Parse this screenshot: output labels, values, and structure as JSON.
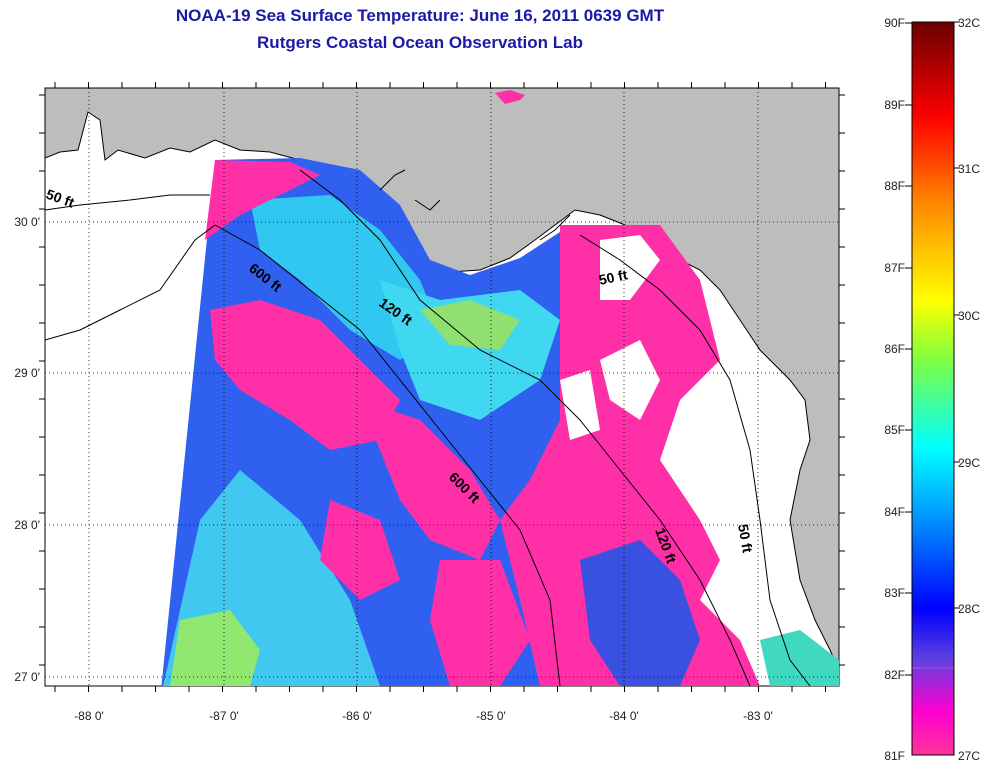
{
  "title": {
    "line1": "NOAA-19 Sea Surface Temperature:  June 16, 2011 0639 GMT",
    "line2": "Rutgers Coastal Ocean Observation Lab"
  },
  "map": {
    "lon_ticks": [
      "-88 0'",
      "-87 0'",
      "-86 0'",
      "-85 0'",
      "-84 0'",
      "-83 0'"
    ],
    "lat_ticks": [
      "30 0'",
      "29 0'",
      "28 0'",
      "27 0'"
    ],
    "contours": [
      "50 ft",
      "600 ft",
      "120 ft",
      "50 ft",
      "600 ft",
      "120 ft",
      "50 ft"
    ],
    "lon_range": [
      -88.35,
      -82.6
    ],
    "lat_range": [
      26.95,
      30.85
    ],
    "colors": {
      "land": "#bdbdbd",
      "frame": "#000000"
    }
  },
  "colorbar": {
    "f_labels": [
      "90F",
      "89F",
      "88F",
      "87F",
      "86F",
      "85F",
      "84F",
      "83F",
      "82F",
      "81F"
    ],
    "c_labels": [
      "32C",
      "31C",
      "30C",
      "29C",
      "28C",
      "27C"
    ],
    "stops": [
      "#7a0000",
      "#ff0000",
      "#ff8800",
      "#ffff00",
      "#80ff40",
      "#00ffff",
      "#0080ff",
      "#0000ff",
      "#6030e0",
      "#ff00cc",
      "#ff33a0"
    ]
  }
}
